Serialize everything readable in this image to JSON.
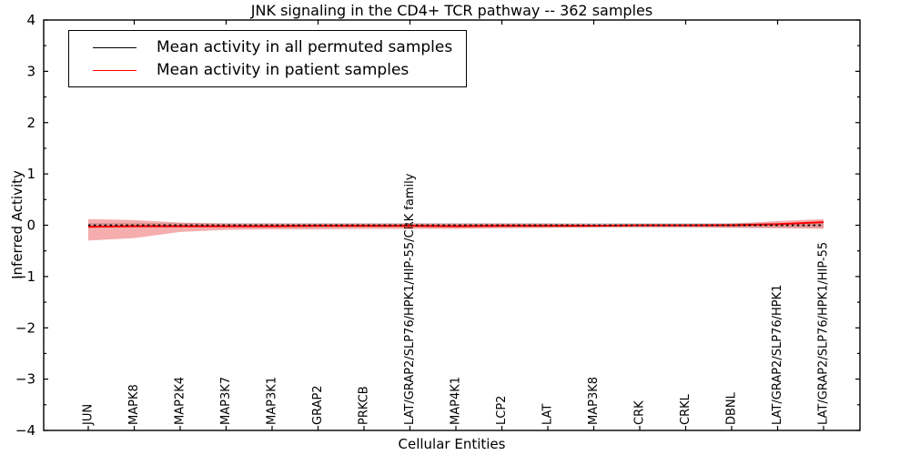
{
  "title": "JNK signaling in the CD4+ TCR pathway -- 362 samples",
  "xlabel": "Cellular Entities",
  "ylabel": "Inferred Activity",
  "legend": {
    "items": [
      {
        "label": "Mean activity in all permuted samples",
        "color": "#000000"
      },
      {
        "label": "Mean activity in patient samples",
        "color": "#ff0000"
      }
    ]
  },
  "chart_data": {
    "type": "line",
    "title": "JNK signaling in the CD4+ TCR pathway -- 362 samples",
    "xlabel": "Cellular Entities",
    "ylabel": "Inferred Activity",
    "sample_count": 362,
    "grid": false,
    "legend_position": "upper left",
    "ylim": [
      -4,
      4
    ],
    "yticks": [
      -4,
      -3,
      -2,
      -1,
      0,
      1,
      2,
      3,
      4
    ],
    "ytick_minor_step": 0.5,
    "top_tick_indices": [
      1,
      3,
      5,
      7,
      9,
      11,
      13,
      15
    ],
    "categories": [
      "JUN",
      "MAPK8",
      "MAP2K4",
      "MAP3K7",
      "MAP3K1",
      "GRAP2",
      "PRKCB",
      "LAT/GRAP2/SLP76/HPK1/HIP-55/CRK family",
      "MAP4K1",
      "LCP2",
      "LAT",
      "MAP3K8",
      "CRK",
      "CRKL",
      "DBNL",
      "LAT/GRAP2/SLP76/HPK1",
      "LAT/GRAP2/SLP76/HPK1/HIP-55"
    ],
    "series": [
      {
        "name": "Mean activity in all permuted samples",
        "color": "#000000",
        "style": "dotted",
        "values": [
          0,
          0,
          0,
          0,
          0,
          0,
          0,
          0,
          0,
          0,
          0,
          0,
          0,
          0,
          0,
          0,
          0
        ]
      },
      {
        "name": "Mean activity in patient samples",
        "color": "#ff0000",
        "style": "solid",
        "values": [
          -0.03,
          -0.02,
          -0.02,
          -0.02,
          -0.02,
          -0.01,
          -0.01,
          -0.01,
          -0.02,
          -0.01,
          -0.01,
          -0.01,
          0.0,
          0.0,
          0.0,
          0.02,
          0.06
        ]
      }
    ],
    "bands": [
      {
        "name": "permuted-samples-std-band",
        "fill": "rgba(140,140,140,0.32)",
        "upper": [
          0.045,
          0.045,
          0.045,
          0.045,
          0.045,
          0.045,
          0.045,
          0.045,
          0.045,
          0.045,
          0.045,
          0.045,
          0.045,
          0.045,
          0.045,
          0.045,
          0.045
        ],
        "lower": [
          -0.045,
          -0.045,
          -0.045,
          -0.045,
          -0.045,
          -0.045,
          -0.045,
          -0.045,
          -0.045,
          -0.045,
          -0.045,
          -0.045,
          -0.045,
          -0.045,
          -0.045,
          -0.045,
          -0.045
        ]
      },
      {
        "name": "patient-samples-std-band",
        "fill": "rgba(230,40,40,0.38)",
        "upper": [
          0.12,
          0.1,
          0.05,
          0.03,
          0.03,
          0.03,
          0.03,
          0.03,
          0.03,
          0.03,
          0.03,
          0.02,
          0.02,
          0.02,
          0.03,
          0.08,
          0.12
        ],
        "lower": [
          -0.3,
          -0.25,
          -0.13,
          -0.09,
          -0.08,
          -0.08,
          -0.07,
          -0.07,
          -0.07,
          -0.06,
          -0.05,
          -0.04,
          -0.04,
          -0.04,
          -0.05,
          -0.06,
          -0.07
        ]
      }
    ]
  }
}
